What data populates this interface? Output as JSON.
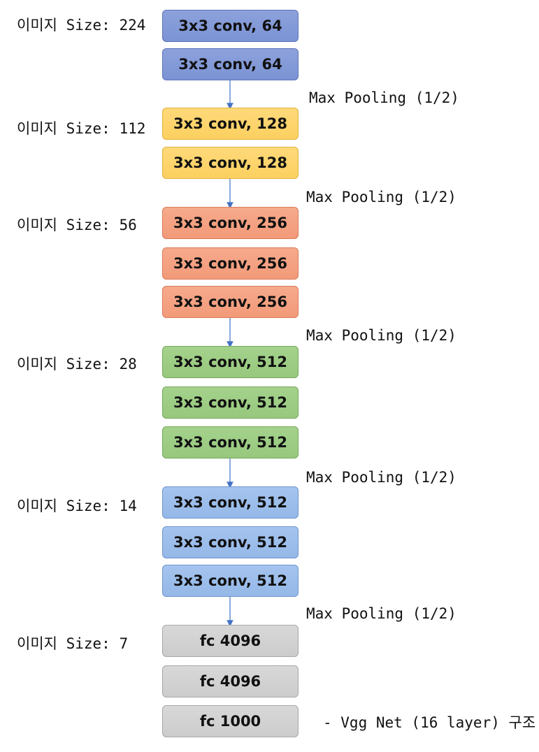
{
  "size_labels": [
    "이미지 Size: 224",
    "이미지 Size: 112",
    "이미지 Size: 56",
    "이미지 Size: 28",
    "이미지 Size: 14",
    "이미지 Size: 7"
  ],
  "pooling_label": "Max Pooling (1/2)",
  "layers": [
    "3x3 conv, 64",
    "3x3 conv, 64",
    "3x3 conv, 128",
    "3x3 conv, 128",
    "3x3 conv, 256",
    "3x3 conv, 256",
    "3x3 conv, 256",
    "3x3 conv, 512",
    "3x3 conv, 512",
    "3x3 conv, 512",
    "3x3 conv, 512",
    "3x3 conv, 512",
    "3x3 conv, 512",
    "fc 4096",
    "fc 4096",
    "fc 1000"
  ],
  "caption": "- Vgg Net (16 layer) 구조",
  "colors": {
    "block1": "#7b93d4",
    "block2": "#fcd060",
    "block3": "#f29a79",
    "block4": "#97c87d",
    "block5": "#95b8e8",
    "fc": "#cccccc",
    "arrow": "#4472c4"
  }
}
